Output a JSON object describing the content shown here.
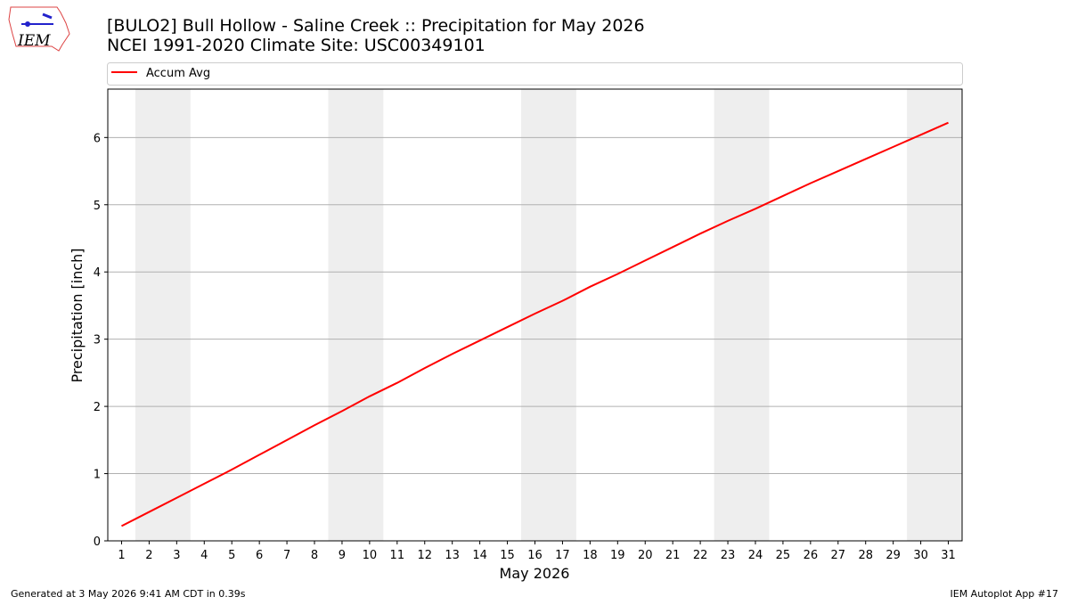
{
  "logo": "IEM",
  "footer": {
    "left": "Generated at 3 May 2026 9:41 AM CDT in 0.39s",
    "right": "IEM Autoplot App #17"
  },
  "chart_data": {
    "type": "line",
    "title": "[BULO2] Bull Hollow - Saline Creek :: Precipitation for May 2026",
    "subtitle": "NCEI 1991-2020 Climate Site: USC00349101",
    "x_label": "May 2026",
    "y_label": "Precipitation [inch]",
    "x": [
      1,
      2,
      3,
      4,
      5,
      6,
      7,
      8,
      9,
      10,
      11,
      12,
      13,
      14,
      15,
      16,
      17,
      18,
      19,
      20,
      21,
      22,
      23,
      24,
      25,
      26,
      27,
      28,
      29,
      30,
      31
    ],
    "series": [
      {
        "name": "Accum Avg",
        "color": "#ff0000",
        "values": [
          0.22,
          0.43,
          0.64,
          0.85,
          1.06,
          1.28,
          1.5,
          1.72,
          1.93,
          2.15,
          2.35,
          2.57,
          2.78,
          2.98,
          3.18,
          3.38,
          3.57,
          3.78,
          3.97,
          4.17,
          4.37,
          4.57,
          4.76,
          4.94,
          5.13,
          5.32,
          5.5,
          5.68,
          5.86,
          6.04,
          6.22
        ]
      }
    ],
    "xlim": [
      0.5,
      31.5
    ],
    "ylim": [
      0,
      6.72
    ],
    "xticks": [
      1,
      2,
      3,
      4,
      5,
      6,
      7,
      8,
      9,
      10,
      11,
      12,
      13,
      14,
      15,
      16,
      17,
      18,
      19,
      20,
      21,
      22,
      23,
      24,
      25,
      26,
      27,
      28,
      29,
      30,
      31
    ],
    "yticks": [
      0,
      1,
      2,
      3,
      4,
      5,
      6
    ],
    "weekend_spans": [
      [
        1.5,
        3.5
      ],
      [
        8.5,
        10.5
      ],
      [
        15.5,
        17.5
      ],
      [
        22.5,
        24.5
      ],
      [
        29.5,
        31.5
      ]
    ],
    "shade_color": "#eeeeee",
    "grid": true,
    "legend": "top"
  }
}
